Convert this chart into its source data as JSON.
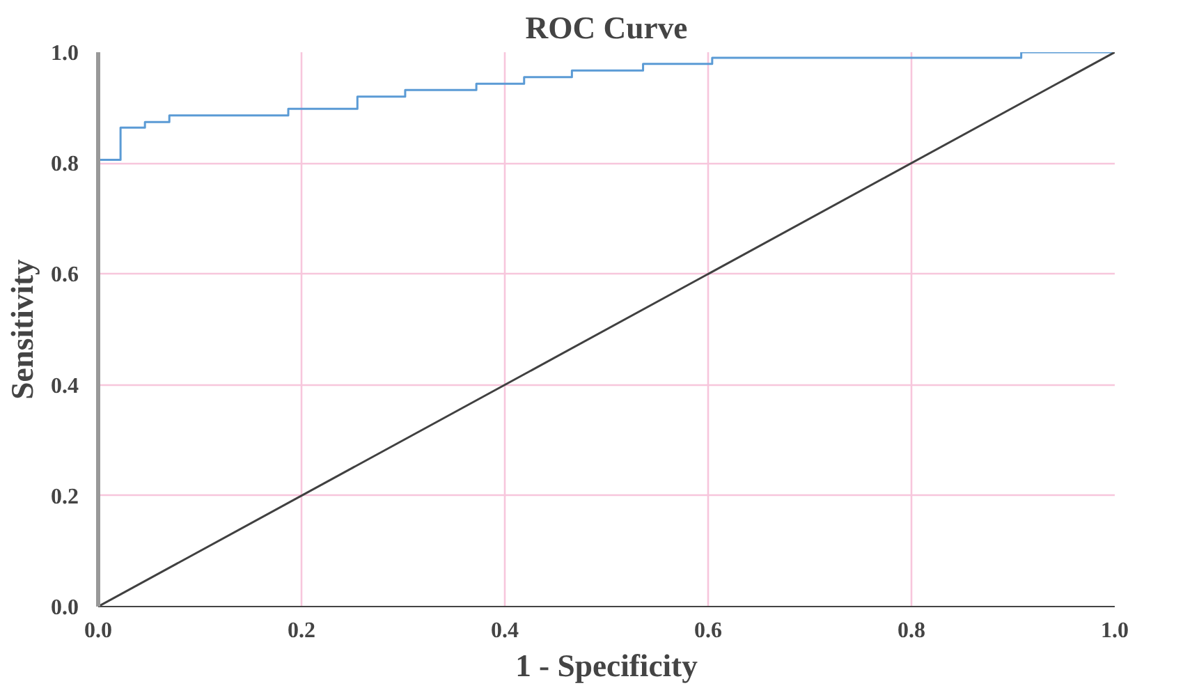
{
  "chart_data": {
    "type": "step",
    "title": "ROC Curve",
    "xlabel": "1 - Specificity",
    "ylabel": "Sensitivity",
    "xlim": [
      0,
      1
    ],
    "ylim": [
      0,
      1
    ],
    "xticks": [
      {
        "value": 0,
        "label": "0.0"
      },
      0.2,
      0.4,
      0.6,
      0.8,
      {
        "value": 1,
        "label": "1.0"
      }
    ],
    "yticks": [
      {
        "value": 0,
        "label": "0.0"
      },
      0.2,
      0.4,
      0.6,
      0.8,
      {
        "value": 1,
        "label": "1.0"
      }
    ],
    "grid": true,
    "series": [
      {
        "color": "#5b9bd5",
        "x": [
          0,
          0,
          0.022,
          0.046,
          0.07,
          0.187,
          0.255,
          0.302,
          0.372,
          0.419,
          0.466,
          0.536,
          0.604,
          0.908,
          1.0
        ],
        "values": [
          0,
          0.806,
          0.864,
          0.874,
          0.886,
          0.898,
          0.92,
          0.932,
          0.943,
          0.955,
          0.967,
          0.979,
          0.99,
          1.0,
          1.0
        ]
      },
      {
        "type": "line",
        "color": "#404040",
        "x": [
          0,
          1
        ],
        "values": [
          0,
          1
        ]
      }
    ]
  }
}
